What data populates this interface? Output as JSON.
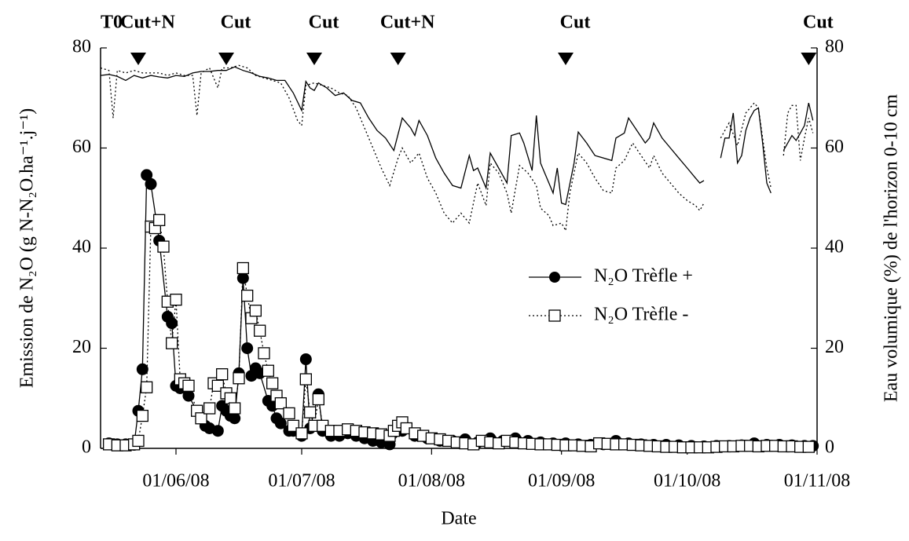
{
  "chart_data": {
    "type": "line",
    "xlabel": "Date",
    "ylabel": "Emission de N₂O (g N-N₂O.ha⁻¹.j⁻¹)",
    "y2label": "Eau volumique (%) de l'horizon 0-10 cm",
    "xlim": [
      "2008-05-14",
      "2008-11-01"
    ],
    "xticks": [
      {
        "value": "2008-06-01",
        "label": "01/06/08"
      },
      {
        "value": "2008-07-01",
        "label": "01/07/08"
      },
      {
        "value": "2008-08-01",
        "label": "01/08/08"
      },
      {
        "value": "2008-09-01",
        "label": "01/09/08"
      },
      {
        "value": "2008-10-01",
        "label": "01/10/08"
      },
      {
        "value": "2008-11-01",
        "label": "01/11/08"
      }
    ],
    "ylim": [
      0,
      80
    ],
    "yticks": [
      0,
      20,
      40,
      60,
      80
    ],
    "y2lim": [
      0,
      80
    ],
    "y2ticks": [
      0,
      20,
      40,
      60,
      80
    ],
    "events": [
      {
        "text": "T0",
        "x": "2008-05-14",
        "marker": false
      },
      {
        "text": "Cut+N",
        "x": "2008-05-23",
        "marker": true
      },
      {
        "text": "Cut",
        "x": "2008-06-13",
        "marker": true
      },
      {
        "text": "Cut",
        "x": "2008-07-04",
        "marker": true
      },
      {
        "text": "Cut+N",
        "x": "2008-07-24",
        "marker": true
      },
      {
        "text": "Cut",
        "x": "2008-09-02",
        "marker": true
      },
      {
        "text": "Cut",
        "x": "2008-10-30",
        "marker": true
      }
    ],
    "series": [
      {
        "axis": "y2",
        "color": "#000000",
        "line": "solid",
        "marker": "none",
        "x": [
          "2008-05-14",
          "2008-05-16",
          "2008-05-18",
          "2008-05-20",
          "2008-05-22",
          "2008-05-24",
          "2008-05-26",
          "2008-05-28",
          "2008-05-30",
          "2008-06-01",
          "2008-06-03",
          "2008-06-05",
          "2008-06-07",
          "2008-06-09",
          "2008-06-11",
          "2008-06-13",
          "2008-06-15",
          "2008-06-17",
          "2008-06-19",
          "2008-06-21",
          "2008-06-23",
          "2008-06-25",
          "2008-06-27",
          "2008-06-29",
          "2008-07-01",
          "2008-07-02",
          "2008-07-03",
          "2008-07-04",
          "2008-07-05",
          "2008-07-07",
          "2008-07-09",
          "2008-07-11",
          "2008-07-13",
          "2008-07-15",
          "2008-07-17",
          "2008-07-19",
          "2008-07-21",
          "2008-07-23",
          "2008-07-25",
          "2008-07-27",
          "2008-07-28",
          "2008-07-29",
          "2008-07-31",
          "2008-08-02",
          "2008-08-04",
          "2008-08-06",
          "2008-08-08",
          "2008-08-10",
          "2008-08-11",
          "2008-08-12",
          "2008-08-14",
          "2008-08-15",
          "2008-08-17",
          "2008-08-19",
          "2008-08-20",
          "2008-08-22",
          "2008-08-23",
          "2008-08-25",
          "2008-08-26",
          "2008-08-27",
          "2008-08-29",
          "2008-08-30",
          "2008-08-31",
          "2008-09-01",
          "2008-09-02",
          "2008-09-04",
          "2008-09-05",
          "2008-09-07",
          "2008-09-09",
          "2008-09-13",
          "2008-09-14",
          "2008-09-16",
          "2008-09-17",
          "2008-09-19",
          "2008-09-21",
          "2008-09-22",
          "2008-09-23",
          "2008-09-25",
          "2008-09-27",
          "2008-09-29",
          "2008-10-01",
          "2008-10-03",
          "2008-10-04",
          "2008-10-05",
          "2008-10-07",
          "2008-10-09",
          "2008-10-10",
          "2008-10-11",
          "2008-10-12",
          "2008-10-13",
          "2008-10-14",
          "2008-10-15",
          "2008-10-16",
          "2008-10-17",
          "2008-10-18",
          "2008-10-19",
          "2008-10-20",
          "2008-10-21",
          "2008-10-22",
          "2008-10-24",
          "2008-10-25",
          "2008-10-26",
          "2008-10-27",
          "2008-10-28",
          "2008-10-29",
          "2008-10-30",
          "2008-10-31"
        ],
        "values": [
          74.5,
          74.7,
          74.3,
          73.5,
          74.5,
          74,
          74.5,
          74.2,
          74,
          74.5,
          74.3,
          75,
          75.3,
          75.3,
          75.5,
          75.5,
          76.2,
          75.5,
          75,
          74.3,
          74,
          73.5,
          73.5,
          71,
          67.5,
          73.3,
          72,
          71.5,
          73,
          72,
          70.5,
          71,
          69.5,
          69,
          66,
          63.5,
          62,
          59.5,
          66,
          64,
          62.5,
          65.5,
          62.5,
          58,
          55,
          52.5,
          52,
          58.5,
          55.5,
          56,
          52,
          59,
          56,
          53,
          62.5,
          63,
          61,
          55.5,
          66.5,
          57,
          53,
          51,
          56,
          49,
          48.7,
          57,
          63.2,
          61,
          58.5,
          57.5,
          62,
          63,
          66,
          63.5,
          61,
          62,
          65,
          62,
          60,
          58,
          56,
          54,
          53,
          53.5,
          null,
          58,
          62,
          62,
          67,
          57,
          58.5,
          63.5,
          66,
          67.5,
          68,
          61,
          53,
          51,
          null,
          59.5,
          61,
          62.5,
          61.5,
          63,
          64.5,
          69,
          65.5
        ]
      },
      {
        "axis": "y2",
        "color": "#000000",
        "line": "dotted",
        "marker": "none",
        "x": [
          "2008-05-14",
          "2008-05-16",
          "2008-05-17",
          "2008-05-18",
          "2008-05-20",
          "2008-05-22",
          "2008-05-24",
          "2008-05-26",
          "2008-05-28",
          "2008-05-30",
          "2008-06-01",
          "2008-06-03",
          "2008-06-05",
          "2008-06-06",
          "2008-06-07",
          "2008-06-09",
          "2008-06-11",
          "2008-06-12",
          "2008-06-14",
          "2008-06-16",
          "2008-06-18",
          "2008-06-20",
          "2008-06-22",
          "2008-06-24",
          "2008-06-26",
          "2008-06-28",
          "2008-06-30",
          "2008-07-01",
          "2008-07-02",
          "2008-07-04",
          "2008-07-06",
          "2008-07-08",
          "2008-07-10",
          "2008-07-12",
          "2008-07-14",
          "2008-07-16",
          "2008-07-18",
          "2008-07-20",
          "2008-07-22",
          "2008-07-24",
          "2008-07-25",
          "2008-07-27",
          "2008-07-29",
          "2008-07-31",
          "2008-08-02",
          "2008-08-04",
          "2008-08-06",
          "2008-08-08",
          "2008-08-10",
          "2008-08-12",
          "2008-08-14",
          "2008-08-15",
          "2008-08-17",
          "2008-08-19",
          "2008-08-20",
          "2008-08-22",
          "2008-08-24",
          "2008-08-26",
          "2008-08-27",
          "2008-08-29",
          "2008-08-30",
          "2008-09-01",
          "2008-09-02",
          "2008-09-03",
          "2008-09-05",
          "2008-09-07",
          "2008-09-09",
          "2008-09-11",
          "2008-09-13",
          "2008-09-14",
          "2008-09-16",
          "2008-09-18",
          "2008-09-20",
          "2008-09-22",
          "2008-09-23",
          "2008-09-25",
          "2008-09-27",
          "2008-09-29",
          "2008-10-01",
          "2008-10-03",
          "2008-10-04",
          "2008-10-05",
          "2008-10-07",
          "2008-10-09",
          "2008-10-11",
          "2008-10-13",
          "2008-10-15",
          "2008-10-17",
          "2008-10-18",
          "2008-10-19",
          "2008-10-20",
          "2008-10-21",
          "2008-10-22",
          "2008-10-24",
          "2008-10-25",
          "2008-10-26",
          "2008-10-27",
          "2008-10-28",
          "2008-10-29",
          "2008-10-30",
          "2008-10-31"
        ],
        "values": [
          76,
          75.5,
          66,
          75.5,
          75,
          75.5,
          75,
          75,
          75,
          74.5,
          75,
          74.5,
          74.5,
          66.5,
          75,
          76,
          72,
          76,
          76,
          76.5,
          76,
          74.5,
          74,
          73.5,
          73,
          70,
          65.5,
          64.5,
          72.5,
          73,
          72.5,
          72,
          71,
          70.5,
          68,
          64,
          60,
          56,
          52.5,
          58,
          60,
          57,
          59,
          54,
          51,
          47,
          45,
          47,
          45,
          53,
          48.5,
          57,
          55,
          51,
          47,
          56.5,
          55,
          52.5,
          48,
          46.5,
          44.5,
          45,
          43.5,
          51,
          59,
          57,
          54,
          51.5,
          51,
          56,
          57.5,
          61,
          58.5,
          56,
          58.5,
          55,
          53,
          51,
          49.5,
          48.5,
          47.5,
          49,
          null,
          62,
          65,
          60.5,
          67,
          69,
          68,
          62,
          56,
          52,
          null,
          58.5,
          67,
          68.5,
          68.5,
          57.5,
          62,
          66,
          63
        ]
      },
      {
        "name": "N₂O Trèfle +",
        "axis": "y",
        "color": "#000000",
        "line": "solid",
        "marker": "circle",
        "x": [
          "2008-05-16",
          "2008-05-18",
          "2008-05-20",
          "2008-05-22",
          "2008-05-23",
          "2008-05-24",
          "2008-05-25",
          "2008-05-26",
          "2008-05-28",
          "2008-05-30",
          "2008-05-31",
          "2008-06-01",
          "2008-06-02",
          "2008-06-04",
          "2008-06-07",
          "2008-06-08",
          "2008-06-09",
          "2008-06-11",
          "2008-06-12",
          "2008-06-13",
          "2008-06-14",
          "2008-06-15",
          "2008-06-16",
          "2008-06-17",
          "2008-06-18",
          "2008-06-19",
          "2008-06-20",
          "2008-06-21",
          "2008-06-23",
          "2008-06-24",
          "2008-06-25",
          "2008-06-26",
          "2008-06-28",
          "2008-06-29",
          "2008-07-01",
          "2008-07-02",
          "2008-07-03",
          "2008-07-05",
          "2008-07-06",
          "2008-07-08",
          "2008-07-10",
          "2008-07-12",
          "2008-07-14",
          "2008-07-16",
          "2008-07-18",
          "2008-07-20",
          "2008-07-22",
          "2008-07-25",
          "2008-07-28",
          "2008-07-31",
          "2008-08-03",
          "2008-08-06",
          "2008-08-09",
          "2008-08-12",
          "2008-08-15",
          "2008-08-18",
          "2008-08-21",
          "2008-08-24",
          "2008-08-27",
          "2008-08-30",
          "2008-09-02",
          "2008-09-05",
          "2008-09-08",
          "2008-09-11",
          "2008-09-14",
          "2008-09-17",
          "2008-09-20",
          "2008-09-23",
          "2008-09-26",
          "2008-09-29",
          "2008-10-02",
          "2008-10-05",
          "2008-10-08",
          "2008-10-11",
          "2008-10-14",
          "2008-10-17",
          "2008-10-20",
          "2008-10-23",
          "2008-10-26",
          "2008-10-29",
          "2008-10-31"
        ],
        "values": [
          1,
          0.8,
          0.8,
          0.7,
          7.5,
          15.8,
          54.6,
          52.8,
          41.5,
          26.3,
          25,
          12.5,
          12,
          10.5,
          6,
          4.5,
          4,
          3.5,
          8.5,
          7.5,
          6.5,
          6,
          15,
          34,
          20,
          14.5,
          16,
          15,
          9.5,
          8.5,
          6,
          5,
          3.5,
          3.5,
          2.5,
          17.8,
          4,
          10.8,
          3.5,
          2.5,
          2.5,
          3,
          2.5,
          2,
          1.5,
          1.2,
          0.8,
          3.5,
          2.5,
          2,
          1.5,
          1.5,
          1.8,
          1.2,
          2,
          1.5,
          2,
          1.5,
          1.2,
          1,
          1,
          0.8,
          0.7,
          0.8,
          1.5,
          1,
          0.8,
          0.7,
          0.7,
          0.6,
          0.5,
          0.4,
          0.5,
          0.5,
          0.6,
          1,
          0.7,
          0.7,
          0.6,
          0.5,
          0.5
        ]
      },
      {
        "name": "N₂O Trèfle -",
        "axis": "y",
        "color": "#000000",
        "line": "dotted",
        "marker": "square",
        "x": [
          "2008-05-16",
          "2008-05-18",
          "2008-05-20",
          "2008-05-22",
          "2008-05-23",
          "2008-05-24",
          "2008-05-25",
          "2008-05-26",
          "2008-05-27",
          "2008-05-28",
          "2008-05-29",
          "2008-05-30",
          "2008-05-31",
          "2008-06-01",
          "2008-06-02",
          "2008-06-03",
          "2008-06-04",
          "2008-06-06",
          "2008-06-07",
          "2008-06-09",
          "2008-06-10",
          "2008-06-11",
          "2008-06-12",
          "2008-06-13",
          "2008-06-14",
          "2008-06-15",
          "2008-06-16",
          "2008-06-17",
          "2008-06-18",
          "2008-06-19",
          "2008-06-20",
          "2008-06-21",
          "2008-06-22",
          "2008-06-23",
          "2008-06-24",
          "2008-06-25",
          "2008-06-26",
          "2008-06-28",
          "2008-06-29",
          "2008-07-01",
          "2008-07-02",
          "2008-07-03",
          "2008-07-04",
          "2008-07-05",
          "2008-07-06",
          "2008-07-08",
          "2008-07-10",
          "2008-07-12",
          "2008-07-14",
          "2008-07-16",
          "2008-07-18",
          "2008-07-20",
          "2008-07-22",
          "2008-07-23",
          "2008-07-24",
          "2008-07-25",
          "2008-07-26",
          "2008-07-28",
          "2008-07-30",
          "2008-08-01",
          "2008-08-03",
          "2008-08-05",
          "2008-08-07",
          "2008-08-09",
          "2008-08-11",
          "2008-08-13",
          "2008-08-15",
          "2008-08-17",
          "2008-08-19",
          "2008-08-21",
          "2008-08-23",
          "2008-08-25",
          "2008-08-27",
          "2008-08-29",
          "2008-08-31",
          "2008-09-02",
          "2008-09-04",
          "2008-09-06",
          "2008-09-08",
          "2008-09-10",
          "2008-09-12",
          "2008-09-14",
          "2008-09-16",
          "2008-09-18",
          "2008-09-20",
          "2008-09-22",
          "2008-09-24",
          "2008-09-26",
          "2008-09-28",
          "2008-09-30",
          "2008-10-02",
          "2008-10-04",
          "2008-10-06",
          "2008-10-08",
          "2008-10-10",
          "2008-10-12",
          "2008-10-14",
          "2008-10-16",
          "2008-10-18",
          "2008-10-20",
          "2008-10-22",
          "2008-10-24",
          "2008-10-26",
          "2008-10-28",
          "2008-10-30"
        ],
        "values": [
          0.8,
          0.6,
          0.6,
          0.8,
          1.5,
          6.5,
          12.2,
          44.3,
          44,
          45.6,
          40.3,
          29.3,
          21,
          29.7,
          13.8,
          13,
          12.5,
          7.5,
          6,
          8,
          13,
          12.5,
          14.8,
          11,
          10,
          8,
          14,
          36,
          30.5,
          26,
          27.5,
          23.5,
          19,
          15.5,
          13,
          10.5,
          9,
          7,
          4.5,
          3,
          13.8,
          7.2,
          4.5,
          9.8,
          4.5,
          3.5,
          3.5,
          3.8,
          3.5,
          3.2,
          3,
          2.8,
          2.5,
          3.5,
          4.5,
          5.2,
          4,
          3,
          2.5,
          2,
          1.8,
          1.5,
          1.2,
          1,
          0.8,
          1.5,
          1.2,
          1,
          1.5,
          1.2,
          1,
          0.9,
          0.8,
          0.8,
          0.7,
          0.6,
          0.6,
          0.5,
          0.4,
          1,
          0.9,
          0.8,
          0.8,
          0.7,
          0.6,
          0.5,
          0.4,
          0.3,
          0.3,
          0.2,
          0.2,
          0.2,
          0.2,
          0.3,
          0.4,
          0.4,
          0.5,
          0.5,
          0.4,
          0.5,
          0.5,
          0.4,
          0.4,
          0.3,
          0.3
        ]
      }
    ]
  }
}
